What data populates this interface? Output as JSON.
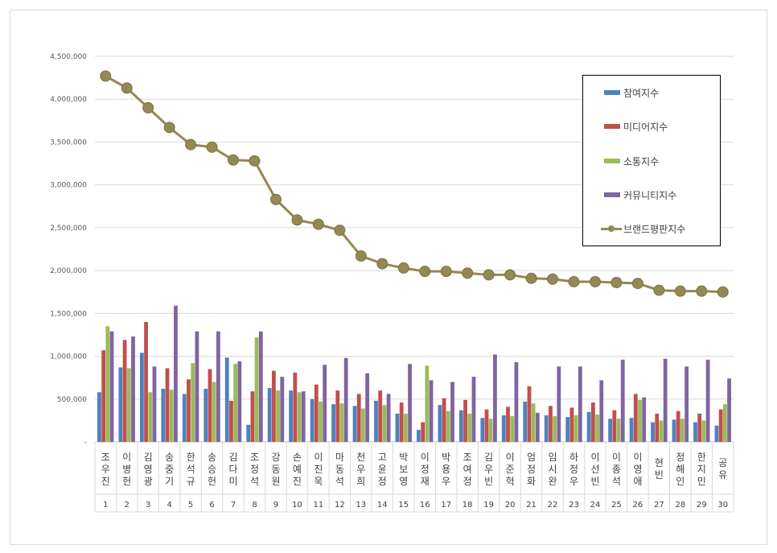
{
  "chart_data": {
    "type": "bar+line",
    "title": "",
    "ylim": [
      0,
      4500000
    ],
    "yticks": [
      0,
      500000,
      1000000,
      1500000,
      2000000,
      2500000,
      3000000,
      3500000,
      4000000,
      4500000
    ],
    "ytick_labels": [
      "-",
      "500,000",
      "1,000,000",
      "1,500,000",
      "2,000,000",
      "2,500,000",
      "3,000,000",
      "3,500,000",
      "4,000,000",
      "4,500,000"
    ],
    "grid": true,
    "legend_position": "top-right",
    "categories": [
      "조우진",
      "이병헌",
      "김영광",
      "송중기",
      "한석규",
      "송승헌",
      "김다미",
      "조정석",
      "강동원",
      "손예진",
      "이진욱",
      "마동석",
      "천우희",
      "고윤정",
      "박보영",
      "이정재",
      "박용우",
      "조여정",
      "김우빈",
      "이준혁",
      "엄정화",
      "임시완",
      "하정우",
      "이선빈",
      "이종석",
      "이영애",
      "현빈",
      "정해인",
      "한지민",
      "공유"
    ],
    "ranks": [
      "1",
      "2",
      "3",
      "4",
      "5",
      "6",
      "7",
      "8",
      "9",
      "10",
      "11",
      "12",
      "13",
      "14",
      "15",
      "16",
      "17",
      "18",
      "19",
      "20",
      "21",
      "22",
      "23",
      "24",
      "25",
      "26",
      "27",
      "28",
      "29",
      "30"
    ],
    "series": [
      {
        "name": "참여지수",
        "kind": "bar",
        "color": "#4f81bd",
        "values": [
          580000,
          870000,
          1040000,
          620000,
          560000,
          620000,
          985000,
          200000,
          630000,
          600000,
          500000,
          440000,
          420000,
          480000,
          330000,
          140000,
          430000,
          370000,
          280000,
          310000,
          470000,
          310000,
          290000,
          350000,
          270000,
          280000,
          230000,
          260000,
          230000,
          190000
        ]
      },
      {
        "name": "미디어지수",
        "kind": "bar",
        "color": "#c0504d",
        "values": [
          1070000,
          1190000,
          1400000,
          860000,
          730000,
          850000,
          480000,
          590000,
          830000,
          810000,
          670000,
          600000,
          560000,
          600000,
          460000,
          230000,
          510000,
          490000,
          380000,
          410000,
          650000,
          420000,
          400000,
          460000,
          370000,
          560000,
          330000,
          360000,
          330000,
          380000
        ]
      },
      {
        "name": "소통지수",
        "kind": "bar",
        "color": "#9bbb59",
        "values": [
          1350000,
          860000,
          580000,
          610000,
          920000,
          700000,
          910000,
          1220000,
          600000,
          580000,
          470000,
          450000,
          390000,
          430000,
          330000,
          890000,
          360000,
          330000,
          270000,
          300000,
          450000,
          300000,
          310000,
          320000,
          270000,
          490000,
          250000,
          270000,
          250000,
          440000
        ]
      },
      {
        "name": "커뮤니티지수",
        "kind": "bar",
        "color": "#8064a2",
        "values": [
          1290000,
          1230000,
          880000,
          1590000,
          1290000,
          1290000,
          940000,
          1290000,
          760000,
          590000,
          900000,
          980000,
          800000,
          560000,
          910000,
          720000,
          700000,
          760000,
          1020000,
          930000,
          340000,
          880000,
          880000,
          720000,
          960000,
          520000,
          970000,
          880000,
          960000,
          740000
        ]
      },
      {
        "name": "브랜드평판지수",
        "kind": "line",
        "color": "#938953",
        "values": [
          4270000,
          4130000,
          3900000,
          3670000,
          3470000,
          3440000,
          3290000,
          3280000,
          2830000,
          2590000,
          2540000,
          2470000,
          2170000,
          2080000,
          2030000,
          1990000,
          1990000,
          1970000,
          1950000,
          1950000,
          1910000,
          1900000,
          1870000,
          1870000,
          1860000,
          1850000,
          1770000,
          1760000,
          1760000,
          1750000
        ]
      }
    ]
  }
}
